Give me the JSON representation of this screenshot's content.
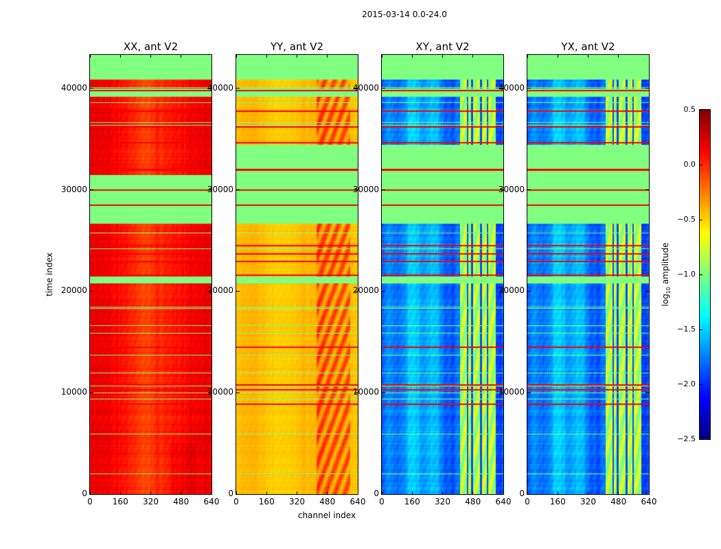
{
  "chart_data": {
    "type": "heatmap",
    "title": "2015-03-14 0.0-24.0",
    "xlabel": "channel index",
    "ylabel": "time index",
    "xlim": [
      0,
      640
    ],
    "ylim": [
      0,
      43300
    ],
    "xticks": [
      "0",
      "160",
      "320",
      "480",
      "640"
    ],
    "xtick_values": [
      0,
      160,
      320,
      480,
      640
    ],
    "yticks": [
      "0",
      "10000",
      "20000",
      "30000",
      "40000"
    ],
    "ytick_values": [
      0,
      10000,
      20000,
      30000,
      40000
    ],
    "colormap": "jet",
    "masked_color": "#80ff80",
    "colorbar": {
      "label_main": "log",
      "label_sub": "10",
      "label_rest": " amplitude",
      "range": [
        -2.5,
        0.5
      ],
      "ticks": [
        "0.5",
        "0.0",
        "−0.5",
        "−1.0",
        "−1.5",
        "−2.0",
        "−2.5"
      ],
      "tick_values": [
        0.5,
        0.0,
        -0.5,
        -1.0,
        -1.5,
        -2.0,
        -2.5
      ]
    },
    "panels": [
      {
        "title": "XX, ant V2",
        "typical_log_amplitude": 0.1,
        "flagged_time_ranges": [
          [
            40900,
            43300
          ],
          [
            39200,
            40000
          ],
          [
            26700,
            31500
          ],
          [
            20800,
            21500
          ]
        ]
      },
      {
        "title": "YY, ant V2",
        "typical_log_amplitude": -0.45,
        "flagged_time_ranges": [
          [
            40900,
            43300
          ],
          [
            39200,
            40000
          ],
          [
            26700,
            34500
          ],
          [
            20800,
            21500
          ]
        ]
      },
      {
        "title": "XY, ant V2",
        "typical_log_amplitude": -1.9,
        "flagged_time_ranges": [
          [
            40900,
            43300
          ],
          [
            39200,
            40000
          ],
          [
            26700,
            34500
          ],
          [
            20800,
            21500
          ]
        ]
      },
      {
        "title": "YX, ant V2",
        "typical_log_amplitude": -1.9,
        "flagged_time_ranges": [
          [
            40900,
            43300
          ],
          [
            39200,
            40000
          ],
          [
            26700,
            34500
          ],
          [
            20800,
            21500
          ]
        ]
      }
    ],
    "rfi_time_indices": [
      39800,
      37800,
      36200,
      34700,
      32000,
      30000,
      28500,
      24500,
      23700,
      23000,
      21600,
      14500,
      10800,
      10300,
      8900
    ]
  }
}
